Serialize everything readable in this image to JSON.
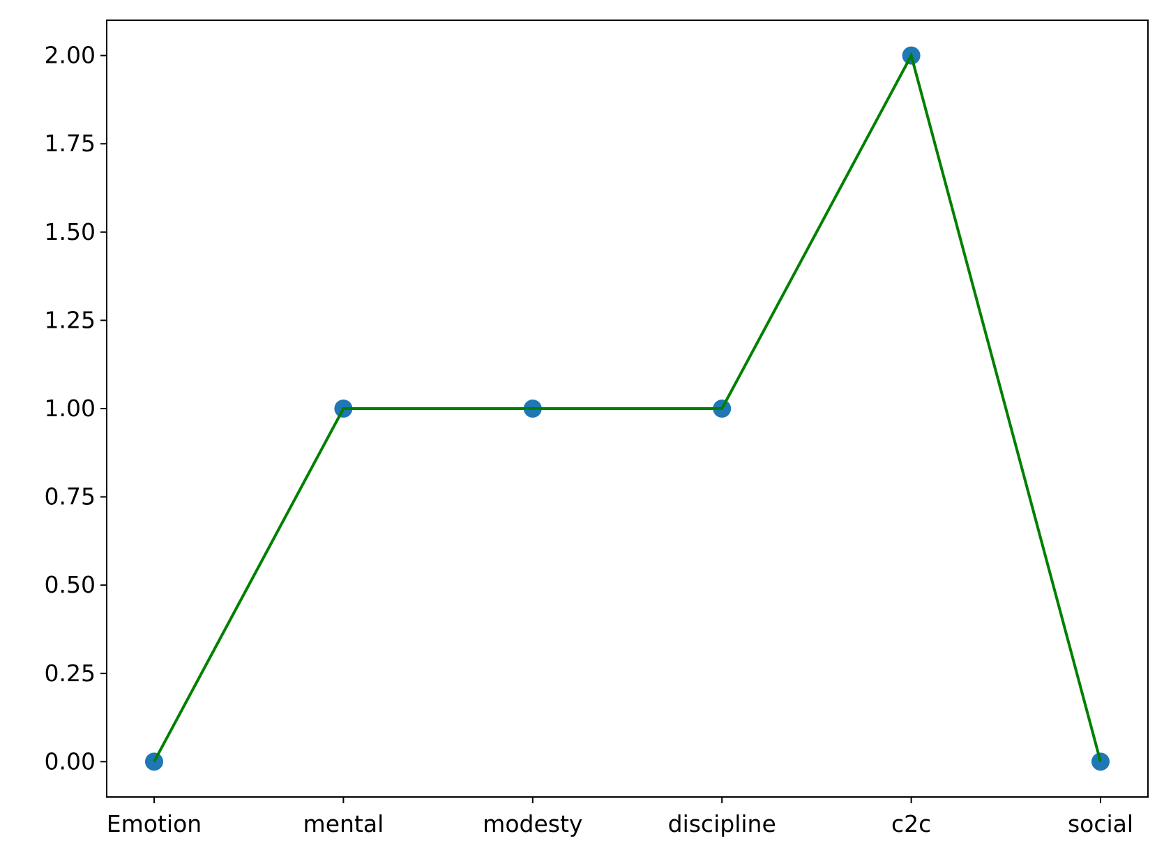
{
  "chart_data": {
    "type": "line",
    "categories": [
      "Emotion",
      "mental",
      "modesty",
      "discipline",
      "c2c",
      "social"
    ],
    "series": [
      {
        "values": [
          0,
          1,
          1,
          1,
          2,
          0
        ]
      }
    ],
    "title": "",
    "xlabel": "",
    "ylabel": "",
    "ylim": [
      -0.1,
      2.1
    ],
    "y_ticks": [
      "0.00",
      "0.25",
      "0.50",
      "0.75",
      "1.00",
      "1.25",
      "1.50",
      "1.75",
      "2.00"
    ],
    "y_tick_values": [
      0,
      0.25,
      0.5,
      0.75,
      1.0,
      1.25,
      1.5,
      1.75,
      2.0
    ],
    "grid": false,
    "legend": "none",
    "colors": {
      "line": "#008000",
      "marker": "#1f77b4",
      "axis": "#000000"
    }
  }
}
